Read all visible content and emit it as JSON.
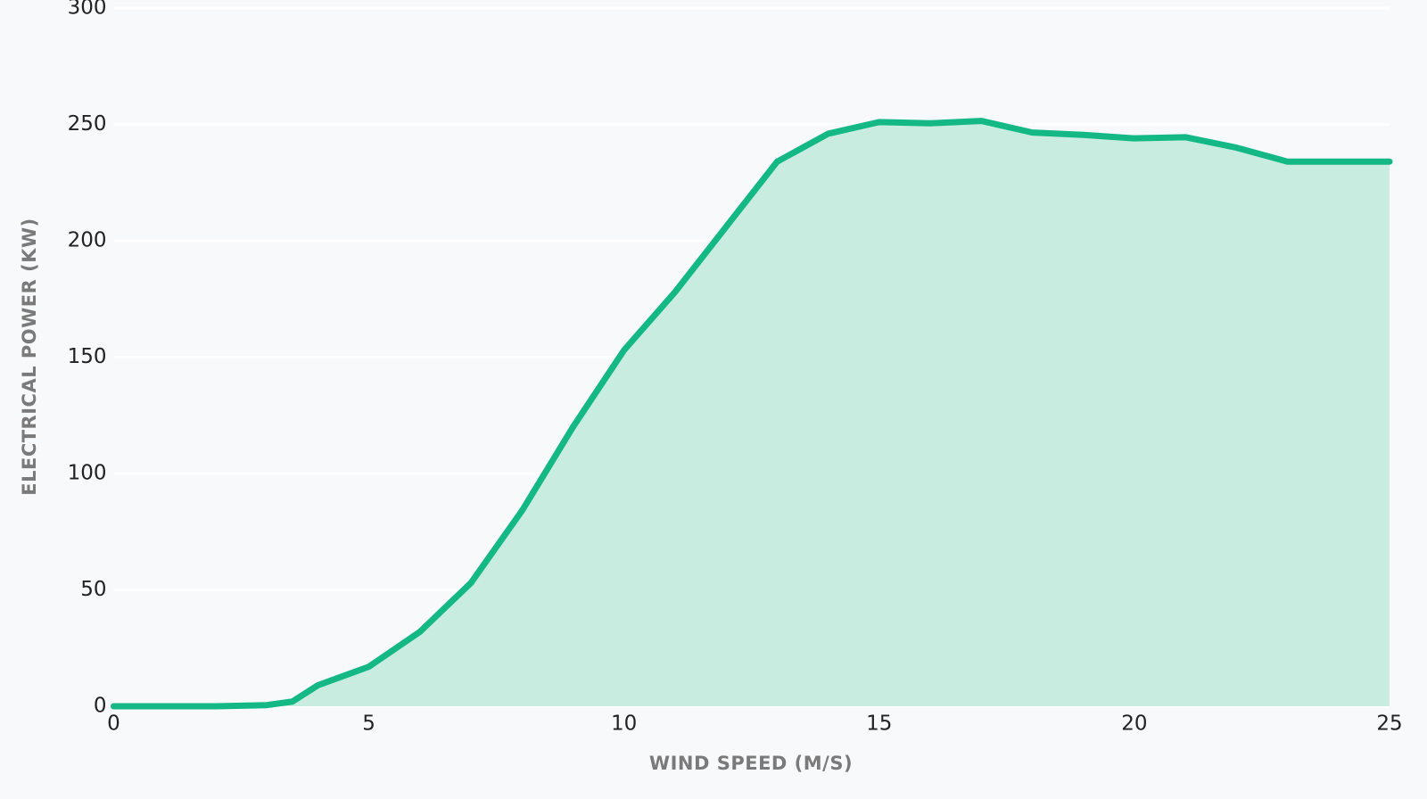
{
  "chart_data": {
    "type": "area",
    "xlabel": "WIND SPEED (M/S)",
    "ylabel": "ELECTRICAL POWER (KW)",
    "x": [
      0,
      1,
      2,
      3,
      3.5,
      4,
      5,
      6,
      7,
      8,
      9,
      10,
      11,
      12,
      13,
      14,
      15,
      16,
      17,
      18,
      19,
      20,
      21,
      22,
      23,
      24,
      25
    ],
    "series": [
      {
        "color": "#14b885",
        "fill": "#c8ede0",
        "values": [
          0,
          0,
          0,
          0.5,
          2,
          9,
          17,
          32,
          53,
          84,
          120,
          153,
          178,
          206,
          234,
          246,
          251,
          250.5,
          251.5,
          246.5,
          245.5,
          244,
          244.5,
          240,
          234,
          234,
          234
        ]
      }
    ],
    "xlim": [
      0,
      25
    ],
    "xticks": [
      0,
      5,
      10,
      15,
      20,
      25
    ],
    "ylim": [
      0,
      300
    ],
    "yticks": [
      0,
      50,
      100,
      150,
      200,
      250,
      300
    ],
    "grid": true
  }
}
